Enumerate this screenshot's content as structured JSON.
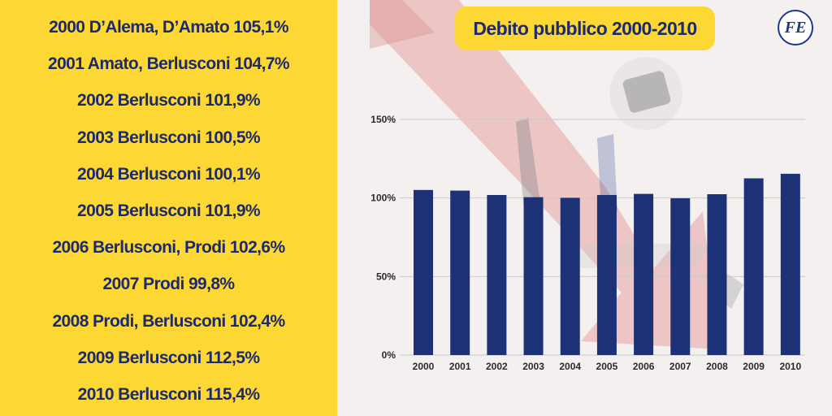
{
  "rows": [
    "2000 D’Alema, D’Amato 105,1%",
    "2001 Amato, Berlusconi 104,7%",
    "2002 Berlusconi 101,9%",
    "2003 Berlusconi 100,5%",
    "2004 Berlusconi 100,1%",
    "2005 Berlusconi 101,9%",
    "2006 Berlusconi, Prodi 102,6%",
    "2007 Prodi 99,8%",
    "2008 Prodi, Berlusconi 102,4%",
    "2009 Berlusconi 112,5%",
    "2010 Berlusconi 115,4%"
  ],
  "logo_text": "FE",
  "colors": {
    "panel": "#fdd835",
    "text": "#1d2a6b",
    "bar": "#1d3276"
  },
  "chart_data": {
    "type": "bar",
    "title": "Debito pubblico 2000-2010",
    "categories": [
      "2000",
      "2001",
      "2002",
      "2003",
      "2004",
      "2005",
      "2006",
      "2007",
      "2008",
      "2009",
      "2010"
    ],
    "values": [
      105.1,
      104.7,
      101.9,
      100.5,
      100.1,
      101.9,
      102.6,
      99.8,
      102.4,
      112.5,
      115.4
    ],
    "ylim": [
      0,
      150
    ],
    "yticks": [
      "0%",
      "50%",
      "100%",
      "150%"
    ],
    "grid": true,
    "legend": "none"
  }
}
